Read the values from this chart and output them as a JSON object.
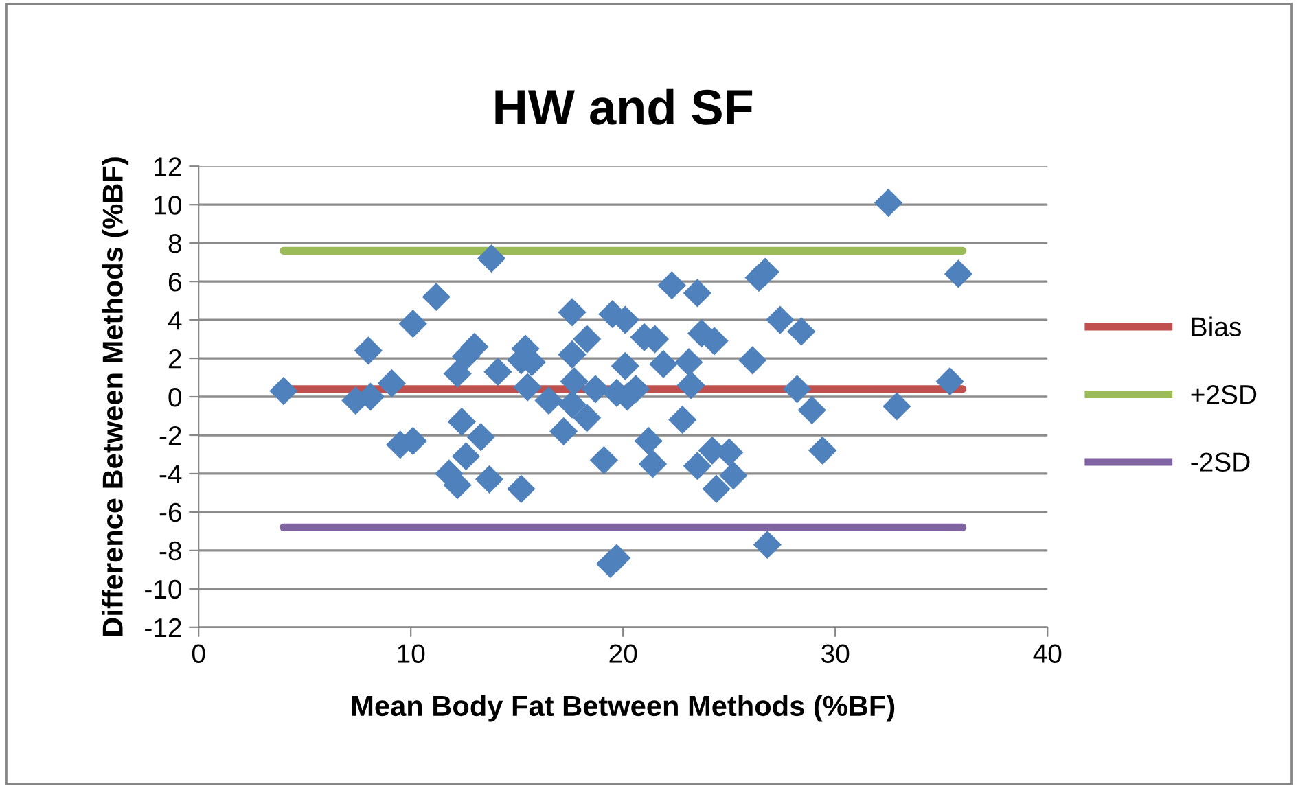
{
  "chart_data": {
    "type": "scatter",
    "title": "HW and SF",
    "xlabel": "Mean Body Fat Between Methods (%BF)",
    "ylabel": "Difference Between Methods (%BF)",
    "xlim": [
      0,
      40
    ],
    "xticks": [
      0,
      10,
      20,
      30,
      40
    ],
    "ylim": [
      -12,
      12
    ],
    "yticks": [
      -12,
      -10,
      -8,
      -6,
      -4,
      -2,
      0,
      2,
      4,
      6,
      8,
      10,
      12
    ],
    "grid": "y",
    "legend": "right",
    "series": [
      {
        "marker": "diamond",
        "color": "#4f81bd",
        "x": [
          4.0,
          8.0,
          7.4,
          8.1,
          9.1,
          10.1,
          11.2,
          9.5,
          10.1,
          12.4,
          13.3,
          12.6,
          11.8,
          12.2,
          12.2,
          12.6,
          13.0,
          13.8,
          14.1,
          13.7,
          15.2,
          15.4,
          15.7,
          15.2,
          15.5,
          16.5,
          17.2,
          17.6,
          17.6,
          18.3,
          17.7,
          17.6,
          18.3,
          18.7,
          19.1,
          19.5,
          20.1,
          20.1,
          19.7,
          20.2,
          20.6,
          19.4,
          19.7,
          21.0,
          21.5,
          21.2,
          21.4,
          21.9,
          22.3,
          22.8,
          23.1,
          23.2,
          23.5,
          23.7,
          24.3,
          23.5,
          24.2,
          25.0,
          24.4,
          25.2,
          26.1,
          26.4,
          26.7,
          27.4,
          26.8,
          28.4,
          28.2,
          28.9,
          29.4,
          32.5,
          32.9,
          35.4,
          35.8
        ],
        "values": [
          0.3,
          2.4,
          -0.2,
          0.0,
          0.7,
          3.8,
          5.2,
          -2.5,
          -2.3,
          -1.3,
          -2.1,
          -3.1,
          -4.0,
          -4.6,
          1.2,
          2.1,
          2.6,
          7.2,
          1.3,
          -4.3,
          -4.8,
          2.5,
          1.8,
          1.9,
          0.5,
          -0.2,
          -1.8,
          4.4,
          2.2,
          3.0,
          0.8,
          -0.4,
          -1.1,
          0.4,
          -3.3,
          4.3,
          4.0,
          1.6,
          0.2,
          0.0,
          0.4,
          -8.7,
          -8.4,
          3.1,
          3.0,
          -2.3,
          -3.5,
          1.7,
          5.8,
          -1.2,
          1.8,
          0.6,
          5.4,
          3.3,
          2.9,
          -3.6,
          -2.8,
          -2.9,
          -4.8,
          -4.1,
          1.9,
          6.2,
          6.5,
          4.0,
          -7.7,
          3.4,
          0.4,
          -0.7,
          -2.8,
          10.1,
          -0.5,
          0.8,
          6.4
        ]
      },
      {
        "type": "line",
        "name": "Bias",
        "color": "#c0504d",
        "x": [
          4.0,
          36.0
        ],
        "values": [
          0.4,
          0.4
        ]
      },
      {
        "type": "line",
        "name": "+2SD",
        "color": "#9bbb59",
        "x": [
          4.0,
          36.0
        ],
        "values": [
          7.6,
          7.6
        ]
      },
      {
        "type": "line",
        "name": "-2SD",
        "color": "#8064a2",
        "x": [
          4.0,
          36.0
        ],
        "values": [
          -6.8,
          -6.8
        ]
      }
    ]
  }
}
